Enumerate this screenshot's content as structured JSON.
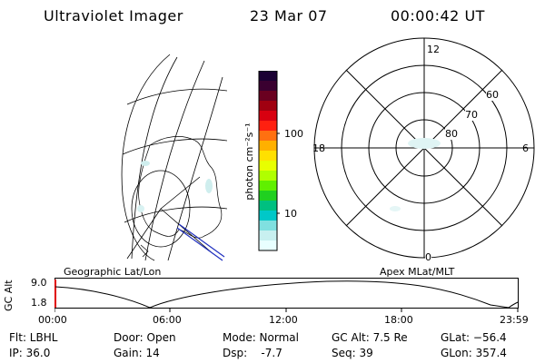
{
  "header": {
    "instrument": "Ultraviolet Imager",
    "date": "23 Mar 07",
    "time": "00:00:42 UT"
  },
  "colorbar": {
    "unit_label": "photon cm⁻²s⁻¹",
    "tick_100": "100",
    "tick_10": "10",
    "colors": [
      "#1a0033",
      "#3a0030",
      "#6a0020",
      "#a00010",
      "#d80010",
      "#ff2010",
      "#ff7010",
      "#ffb000",
      "#ffe000",
      "#e8ff00",
      "#b0ff00",
      "#60f000",
      "#20d020",
      "#00c080",
      "#00c8c8",
      "#80e0e0",
      "#c8f0f0",
      "#e8ffff"
    ]
  },
  "polar_plot": {
    "mlt_top": "12",
    "mlt_left": "18",
    "mlt_right": "6",
    "mlt_bottom": "0",
    "lat_60": "60",
    "lat_70": "70",
    "lat_80": "80"
  },
  "plot_titles": {
    "left": "Geographic Lat/Lon",
    "right": "Apex MLat/MLT"
  },
  "timeline": {
    "ylabel": "GC Alt",
    "y_max": "9.0",
    "y_min": "1.8",
    "x_ticks": [
      "00:00",
      "06:00",
      "12:00",
      "18:00",
      "23:59"
    ]
  },
  "info": {
    "filter": "Flt: LBHL",
    "ip": "IP: 36.0",
    "door": "Door: Open",
    "gain": "Gain: 14",
    "mode": "Mode: Normal",
    "dsp": "Dsp:    -7.7",
    "gc_alt": "GC Alt: 7.5 Re",
    "seq": "Seq: 39",
    "glat": "GLat: −56.4",
    "glon": "GLon: 357.4"
  }
}
